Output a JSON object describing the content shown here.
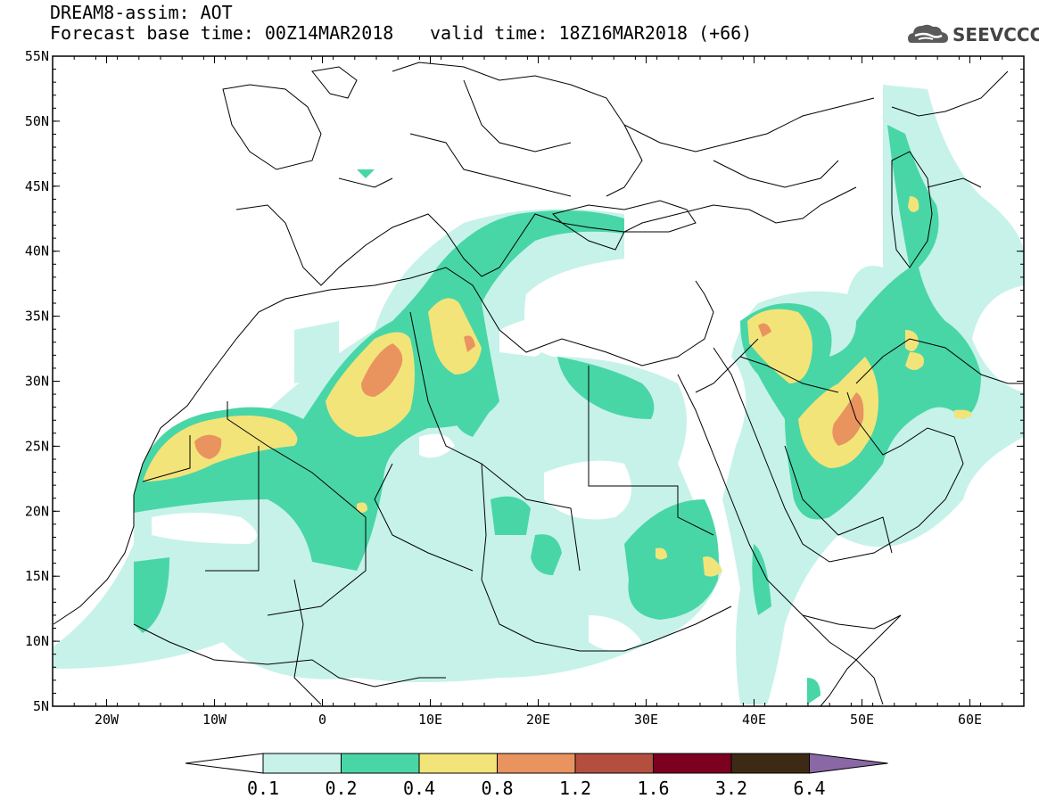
{
  "header": {
    "line1": "DREAM8-assim: AOT",
    "line2": "Forecast base time: 00Z14MAR2018",
    "valid": "valid time: 18Z16MAR2018 (+66)"
  },
  "logo": {
    "text": "SEEVCCC",
    "icon": "cloud-icon"
  },
  "axes": {
    "lat_labels": [
      "55N",
      "50N",
      "45N",
      "40N",
      "35N",
      "30N",
      "25N",
      "20N",
      "15N",
      "10N",
      "5N"
    ],
    "lon_labels": [
      "20W",
      "10W",
      "0",
      "10E",
      "20E",
      "30E",
      "40E",
      "50E",
      "60E"
    ],
    "lat_range": [
      5,
      55
    ],
    "lon_range": [
      -25,
      65
    ]
  },
  "colorbar": {
    "labels": [
      "0.1",
      "0.2",
      "0.4",
      "0.8",
      "1.2",
      "1.6",
      "3.2",
      "6.4"
    ],
    "colors": [
      "#c6f2ea",
      "#49d6a6",
      "#f3e47a",
      "#e9935f",
      "#b44f3f",
      "#7c0020",
      "#3d2a14",
      "#8a68a6"
    ]
  }
}
